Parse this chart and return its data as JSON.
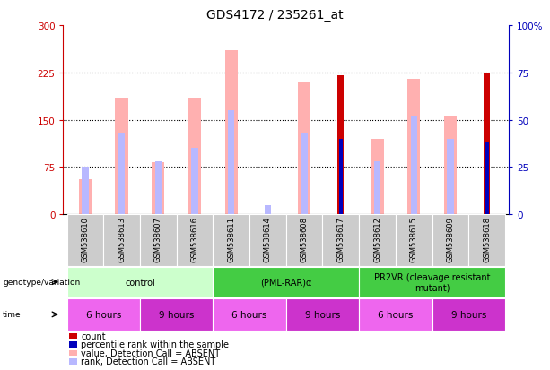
{
  "title": "GDS4172 / 235261_at",
  "samples": [
    "GSM538610",
    "GSM538613",
    "GSM538607",
    "GSM538616",
    "GSM538611",
    "GSM538614",
    "GSM538608",
    "GSM538617",
    "GSM538612",
    "GSM538615",
    "GSM538609",
    "GSM538618"
  ],
  "ylim_left": [
    0,
    300
  ],
  "ylim_right": [
    0,
    100
  ],
  "yticks_left": [
    0,
    75,
    150,
    225,
    300
  ],
  "yticks_right": [
    0,
    25,
    50,
    75,
    100
  ],
  "ytick_labels_left": [
    "0",
    "75",
    "150",
    "225",
    "300"
  ],
  "ytick_labels_right": [
    "0",
    "25",
    "50",
    "75",
    "100%"
  ],
  "count_values": [
    null,
    null,
    null,
    null,
    null,
    null,
    null,
    220,
    null,
    null,
    null,
    225
  ],
  "percentile_values": [
    null,
    null,
    null,
    null,
    null,
    null,
    null,
    40,
    null,
    null,
    null,
    38
  ],
  "absent_value_values": [
    55,
    185,
    83,
    185,
    260,
    null,
    210,
    null,
    120,
    215,
    155,
    null
  ],
  "absent_rank_values": [
    25,
    43,
    28,
    35,
    55,
    5,
    43,
    null,
    28,
    52,
    40,
    null
  ],
  "colors": {
    "count": "#cc0000",
    "percentile": "#0000bb",
    "absent_value": "#ffb0b0",
    "absent_rank": "#b8b8ff",
    "bg_chart": "#ffffff",
    "left_axis_color": "#cc0000",
    "right_axis_color": "#0000bb",
    "sample_bg": "#cccccc"
  },
  "genotype_groups": [
    {
      "label": "control",
      "start": 0,
      "end": 4,
      "color": "#ccffcc"
    },
    {
      "label": "(PML-RAR)α",
      "start": 4,
      "end": 8,
      "color": "#44cc44"
    },
    {
      "label": "PR2VR (cleavage resistant\nmutant)",
      "start": 8,
      "end": 12,
      "color": "#44cc44"
    }
  ],
  "time_groups": [
    {
      "label": "6 hours",
      "start": 0,
      "end": 2,
      "color": "#ee66ee"
    },
    {
      "label": "9 hours",
      "start": 2,
      "end": 4,
      "color": "#cc33cc"
    },
    {
      "label": "6 hours",
      "start": 4,
      "end": 6,
      "color": "#ee66ee"
    },
    {
      "label": "9 hours",
      "start": 6,
      "end": 8,
      "color": "#cc33cc"
    },
    {
      "label": "6 hours",
      "start": 8,
      "end": 10,
      "color": "#ee66ee"
    },
    {
      "label": "9 hours",
      "start": 10,
      "end": 12,
      "color": "#cc33cc"
    }
  ],
  "legend_items": [
    {
      "label": "count",
      "color": "#cc0000"
    },
    {
      "label": "percentile rank within the sample",
      "color": "#0000bb"
    },
    {
      "label": "value, Detection Call = ABSENT",
      "color": "#ffb0b0"
    },
    {
      "label": "rank, Detection Call = ABSENT",
      "color": "#b8b8ff"
    }
  ]
}
